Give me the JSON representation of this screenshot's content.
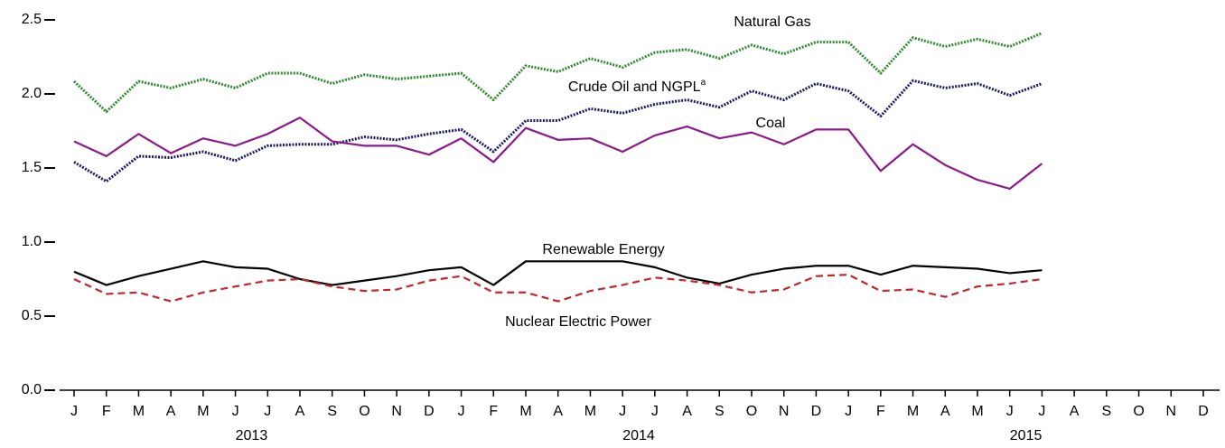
{
  "chart_data": {
    "type": "line",
    "categories": [
      "J",
      "F",
      "M",
      "A",
      "M",
      "J",
      "J",
      "A",
      "S",
      "O",
      "N",
      "D",
      "J",
      "F",
      "M",
      "A",
      "M",
      "J",
      "J",
      "A",
      "S",
      "O",
      "N",
      "D",
      "J",
      "F",
      "M",
      "A",
      "M",
      "J",
      "J",
      "A",
      "S",
      "O",
      "N",
      "D"
    ],
    "years": [
      "2013",
      "2014",
      "2015"
    ],
    "ylim": [
      0,
      2.5
    ],
    "yticks": [
      {
        "value": 0,
        "label": "0.0"
      },
      0.5,
      {
        "value": 1,
        "label": "1.0"
      },
      1.5,
      {
        "value": 2,
        "label": "2.0"
      },
      2.5
    ],
    "grid": false,
    "series": [
      {
        "name": "Natural Gas",
        "color": "#2e8b2e",
        "style": "dotted",
        "values": [
          2.085,
          1.88,
          2.085,
          2.04,
          2.1,
          2.04,
          2.14,
          2.14,
          2.07,
          2.13,
          2.1,
          2.12,
          2.14,
          1.96,
          2.19,
          2.15,
          2.24,
          2.18,
          2.28,
          2.3,
          2.24,
          2.33,
          2.27,
          2.35,
          2.35,
          2.14,
          2.38,
          2.32,
          2.37,
          2.32,
          2.41,
          null,
          null,
          null,
          null,
          null
        ]
      },
      {
        "name": "Crude Oil and NGPL",
        "name_note": "a",
        "color": "#1a1a5e",
        "style": "dotted",
        "values": [
          1.54,
          1.41,
          1.58,
          1.57,
          1.61,
          1.55,
          1.65,
          1.66,
          1.66,
          1.71,
          1.69,
          1.73,
          1.76,
          1.61,
          1.82,
          1.82,
          1.9,
          1.87,
          1.93,
          1.96,
          1.91,
          2.02,
          1.96,
          2.07,
          2.02,
          1.85,
          2.09,
          2.04,
          2.07,
          1.99,
          2.07,
          null,
          null,
          null,
          null,
          null
        ]
      },
      {
        "name": "Coal",
        "color": "#8b1a8b",
        "style": "solid",
        "values": [
          1.68,
          1.58,
          1.73,
          1.6,
          1.7,
          1.65,
          1.73,
          1.84,
          1.68,
          1.65,
          1.65,
          1.59,
          1.7,
          1.54,
          1.77,
          1.69,
          1.7,
          1.61,
          1.72,
          1.78,
          1.7,
          1.74,
          1.66,
          1.76,
          1.76,
          1.48,
          1.66,
          1.52,
          1.42,
          1.36,
          1.53,
          null,
          null,
          null,
          null,
          null
        ]
      },
      {
        "name": "Renewable Energy",
        "color": "#000000",
        "style": "solid",
        "values": [
          0.8,
          0.71,
          0.77,
          0.82,
          0.87,
          0.83,
          0.82,
          0.75,
          0.71,
          0.74,
          0.77,
          0.81,
          0.83,
          0.71,
          0.87,
          0.87,
          0.87,
          0.87,
          0.83,
          0.76,
          0.72,
          0.78,
          0.82,
          0.84,
          0.84,
          0.78,
          0.84,
          0.83,
          0.82,
          0.79,
          0.81,
          null,
          null,
          null,
          null,
          null
        ]
      },
      {
        "name": "Nuclear Electric Power",
        "color": "#c0282d",
        "style": "dashed",
        "values": [
          0.75,
          0.65,
          0.66,
          0.6,
          0.66,
          0.7,
          0.74,
          0.75,
          0.7,
          0.67,
          0.68,
          0.74,
          0.77,
          0.66,
          0.66,
          0.6,
          0.67,
          0.71,
          0.76,
          0.74,
          0.71,
          0.66,
          0.68,
          0.77,
          0.78,
          0.67,
          0.68,
          0.63,
          0.7,
          0.72,
          0.75,
          null,
          null,
          null,
          null,
          null
        ]
      }
    ]
  }
}
